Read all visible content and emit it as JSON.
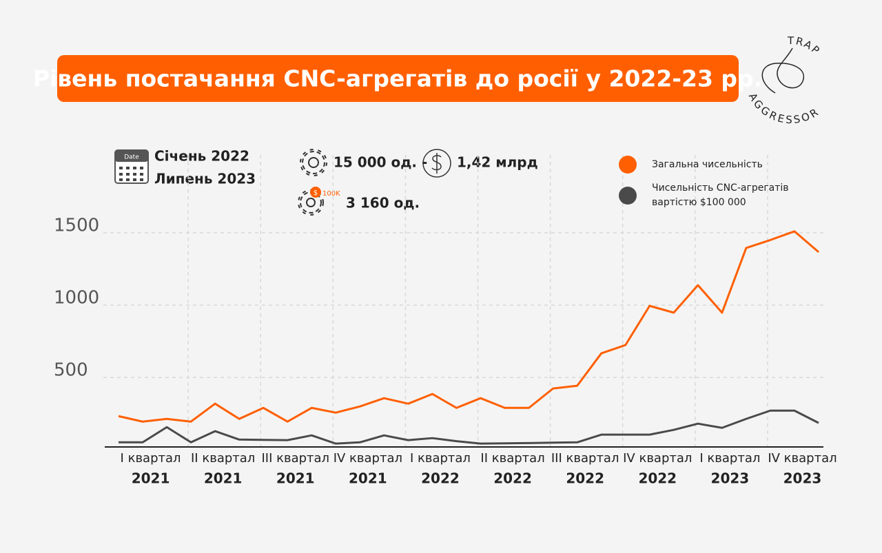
{
  "chart_data": {
    "type": "line",
    "title": "Рівень постачання CNC-агрегатів до росії у 2022-23 рр.",
    "logo_top": "TRAP",
    "logo_bottom": "AGGRESSOR",
    "calendar_label": "Date",
    "period_start": "Січень 2022",
    "period_end": "Липень 2023",
    "total_units": "15 000 од. -",
    "total_cost": "1,42 млрд",
    "badge_label": "100K",
    "expensive_units": "3 160 од.",
    "x": [
      0,
      1,
      2,
      3,
      4,
      5,
      6,
      7,
      8,
      9,
      10,
      11,
      12,
      13,
      14,
      15,
      16,
      17,
      18,
      19,
      20,
      21,
      22,
      23,
      24,
      25,
      26,
      27,
      28,
      29
    ],
    "xlim": [
      0,
      29
    ],
    "xticks": [
      {
        "value": 1.5,
        "label": "I квартал"
      },
      {
        "value": 4.5,
        "label": "II квартал"
      },
      {
        "value": 7.5,
        "label": "III квартал"
      },
      {
        "value": 10.5,
        "label": "IV квартал"
      },
      {
        "value": 13.5,
        "label": "I квартал"
      },
      {
        "value": 16.5,
        "label": "II квартал"
      },
      {
        "value": 19.5,
        "label": "III квартал"
      },
      {
        "value": 22.5,
        "label": "IV квартал"
      },
      {
        "value": 25.5,
        "label": "I квартал"
      },
      {
        "value": 28.5,
        "label": "IV квартал"
      }
    ],
    "xtick_years": [
      "2021",
      "2021",
      "2021",
      "2021",
      "2022",
      "2022",
      "2022",
      "2022",
      "2023",
      "2023"
    ],
    "ylim": [
      20,
      1600
    ],
    "yticks": [
      500,
      1000,
      1500
    ],
    "grid": true,
    "series": [
      {
        "name": "Загальна чисельність",
        "color": "#ff5f00",
        "values": [
          233,
          195,
          214,
          195,
          319,
          214,
          290,
          195,
          290,
          257,
          300,
          357,
          319,
          386,
          290,
          357,
          290,
          290,
          424,
          443,
          667,
          724,
          995,
          948,
          1138,
          948,
          1395,
          1450,
          1510,
          1367
        ]
      },
      {
        "name": "Чисельність CNC-агрегатів вартістю $100 000",
        "color": "#4a4a4a",
        "values": [
          52,
          52,
          157,
          52,
          129,
          71,
          69,
          67,
          100,
          43,
          52,
          100,
          67,
          81,
          60,
          43,
          45,
          47,
          50,
          52,
          105,
          105,
          105,
          138,
          181,
          152,
          214,
          271,
          271,
          186
        ]
      }
    ]
  }
}
